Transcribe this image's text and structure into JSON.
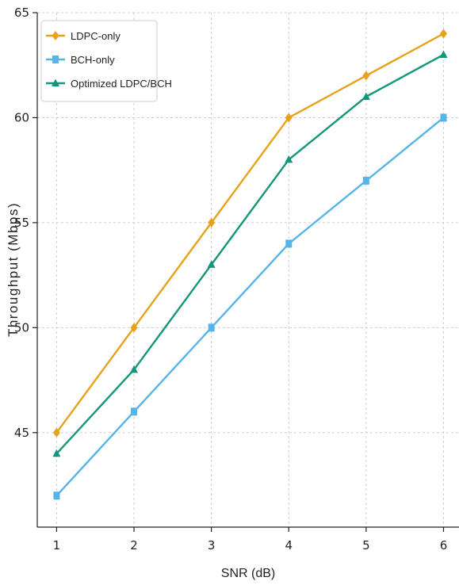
{
  "chart_data": {
    "type": "line",
    "title": "",
    "xlabel": "SNR (dB)",
    "ylabel": "Throughput (Mbps)",
    "x": [
      1,
      2,
      3,
      4,
      5,
      6
    ],
    "xlim": [
      0.75,
      6.2
    ],
    "ylim": [
      40.5,
      65
    ],
    "xticks": [
      "1",
      "2",
      "3",
      "4",
      "5",
      "6"
    ],
    "yticks": [
      "45",
      "50",
      "55",
      "60",
      "65"
    ],
    "grid": true,
    "legend_position": "top-left",
    "series": [
      {
        "name": "LDPC-only",
        "values": [
          45,
          50,
          55,
          60,
          62,
          64
        ],
        "color": "#E6A21A",
        "marker": "diamond"
      },
      {
        "name": "BCH-only",
        "values": [
          42,
          46,
          50,
          54,
          57,
          60
        ],
        "color": "#56B4E9",
        "marker": "square"
      },
      {
        "name": "Optimized LDPC/BCH",
        "values": [
          44,
          48,
          53,
          58,
          61,
          63
        ],
        "color": "#13967A",
        "marker": "triangle"
      }
    ]
  }
}
